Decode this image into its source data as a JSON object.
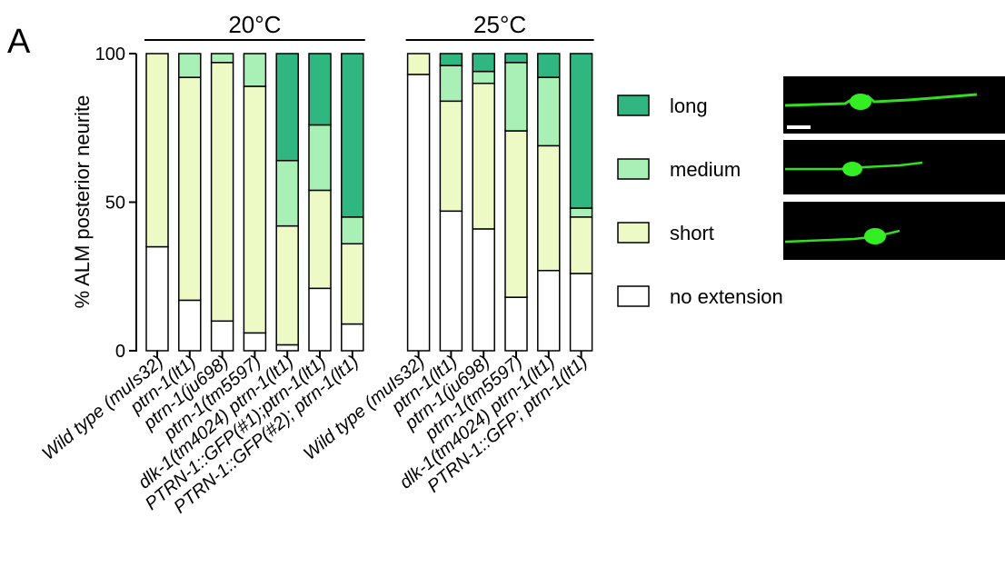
{
  "chart_data": {
    "type": "stacked_bar",
    "panel_label": "A",
    "y_label": "% ALM posterior neurite",
    "ylim": [
      0,
      100
    ],
    "yticks": [
      0,
      50,
      100
    ],
    "groups": [
      {
        "label": "20°C",
        "categories": [
          "Wild type (muIs32)",
          "ptrn-1(lt1)",
          "ptrn-1(ju698)",
          "ptrn-1(tm5597)",
          "dlk-1(tm4024) ptrn-1(lt1)",
          "PTRN-1::GFP(#1);ptrn-1(lt1)",
          "PTRN-1::GFP(#2); ptrn-1(lt1)"
        ]
      },
      {
        "label": "25°C",
        "categories": [
          "Wild type (muIs32)",
          "ptrn-1(lt1)",
          "ptrn-1(ju698)",
          "ptrn-1(tm5597)",
          "dlk-1(tm4024) ptrn-1(lt1)",
          "PTRN-1::GFP; ptrn-1(lt1)"
        ]
      }
    ],
    "series": [
      {
        "name": "no extension",
        "color": "#ffffff",
        "values": [
          35,
          17,
          10,
          6,
          2,
          21,
          9,
          93,
          47,
          41,
          18,
          27,
          26
        ]
      },
      {
        "name": "short",
        "color": "#eefac6",
        "values": [
          65,
          75,
          87,
          83,
          40,
          33,
          27,
          7,
          37,
          49,
          56,
          42,
          19
        ]
      },
      {
        "name": "medium",
        "color": "#a8f0b6",
        "values": [
          0,
          8,
          3,
          11,
          22,
          22,
          9,
          0,
          12,
          4,
          23,
          23,
          3
        ]
      },
      {
        "name": "long",
        "color": "#30b680",
        "values": [
          0,
          0,
          0,
          0,
          36,
          24,
          55,
          0,
          4,
          6,
          3,
          8,
          52
        ]
      }
    ]
  }
}
